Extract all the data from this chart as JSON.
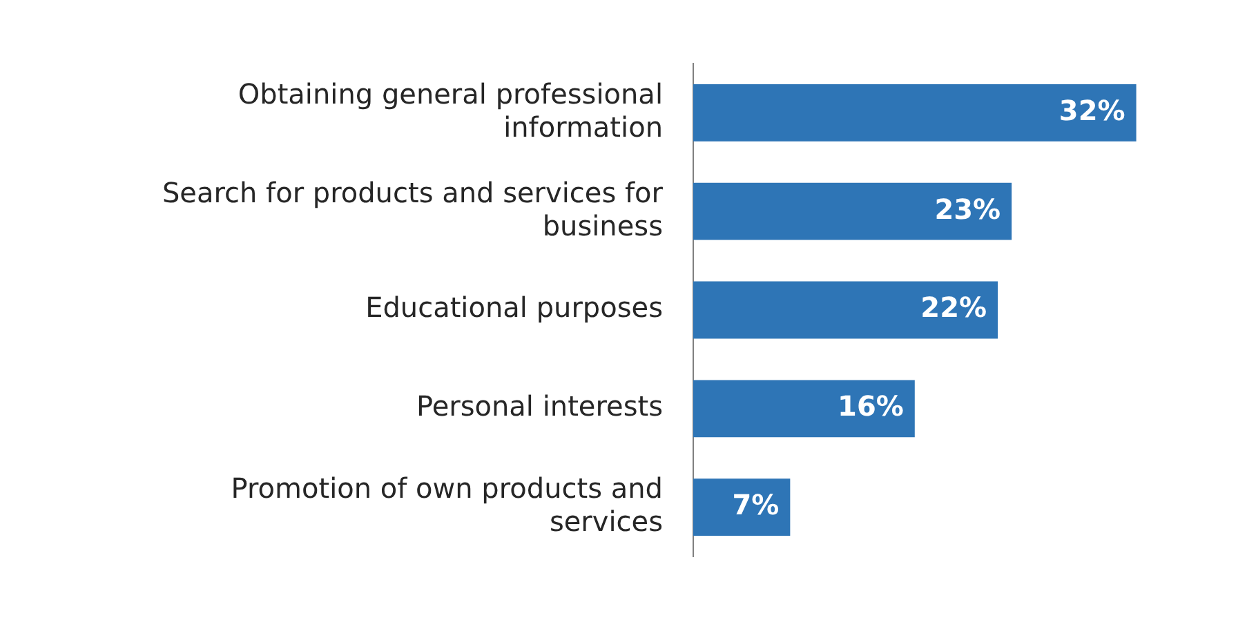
{
  "chart_data": {
    "type": "bar",
    "orientation": "horizontal",
    "categories": [
      "Obtaining general professional information",
      "Search for products and services for business",
      "Educational purposes",
      "Personal interests",
      "Promotion of own products and services"
    ],
    "values": [
      32,
      23,
      22,
      16,
      7
    ],
    "value_labels": [
      "32%",
      "23%",
      "22%",
      "16%",
      "7%"
    ],
    "color": "#2e75b6"
  }
}
